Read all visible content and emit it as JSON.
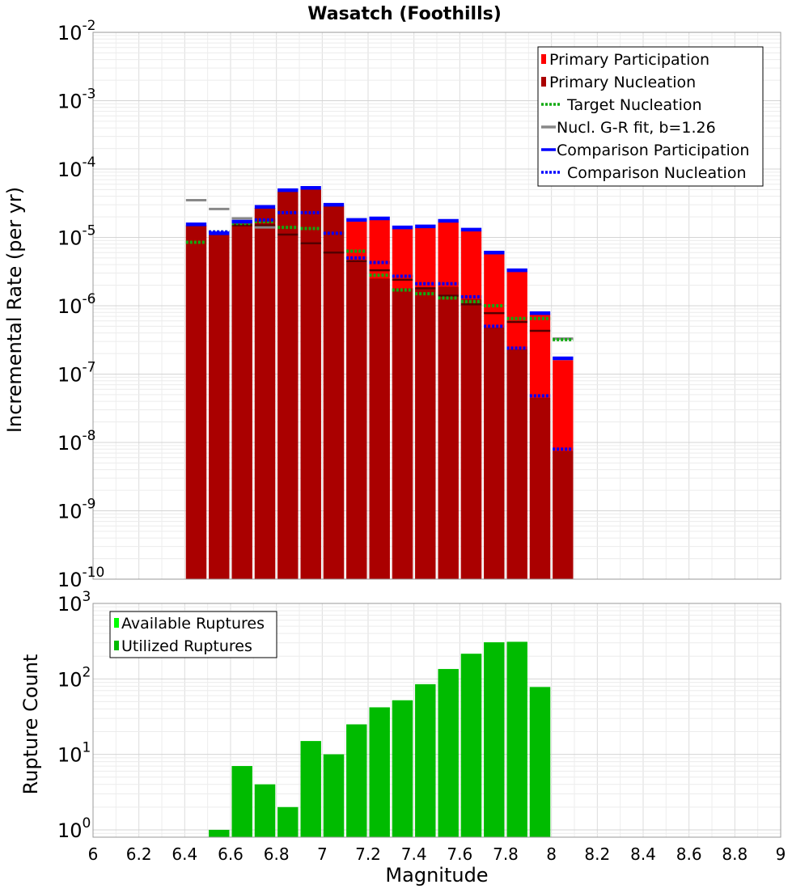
{
  "chart_data": [
    {
      "type": "bar",
      "title": "Wasatch (Foothills)",
      "ylabel": "Incremental Rate (per yr)",
      "xlabel": "",
      "yscale": "log",
      "xlim": [
        6,
        9
      ],
      "ylim": [
        1e-10,
        0.01
      ],
      "y_tick_labels": [
        {
          "base": "10",
          "exp": "-10"
        },
        {
          "base": "10",
          "exp": "-9"
        },
        {
          "base": "10",
          "exp": "-8"
        },
        {
          "base": "10",
          "exp": "-7"
        },
        {
          "base": "10",
          "exp": "-6"
        },
        {
          "base": "10",
          "exp": "-5"
        },
        {
          "base": "10",
          "exp": "-4"
        },
        {
          "base": "10",
          "exp": "-3"
        },
        {
          "base": "10",
          "exp": "-2"
        }
      ],
      "grid": true,
      "legend_position": "top-right",
      "x": [
        6.45,
        6.55,
        6.65,
        6.75,
        6.85,
        6.95,
        7.05,
        7.15,
        7.25,
        7.35,
        7.45,
        7.55,
        7.65,
        7.75,
        7.85,
        7.95,
        8.05
      ],
      "series": [
        {
          "name": "Primary Participation",
          "style": "bar",
          "color": "#ff0000",
          "values": [
            1.5e-05,
            1.1e-05,
            1.6e-05,
            2.7e-05,
            4.7e-05,
            5e-05,
            2.9e-05,
            1.7e-05,
            1.8e-05,
            1.35e-05,
            1.4e-05,
            1.7e-05,
            1.25e-05,
            5.8e-06,
            3.2e-06,
            7.5e-07,
            1.6e-07
          ]
        },
        {
          "name": "Primary Nucleation",
          "style": "bar",
          "color": "#aa0000",
          "values": [
            1.5e-05,
            1.1e-05,
            1.6e-05,
            2.7e-05,
            4.7e-05,
            5e-05,
            2.9e-05,
            4.5e-06,
            2.5e-06,
            1.8e-06,
            1.8e-06,
            1.9e-06,
            1.25e-06,
            4.8e-07,
            2.3e-07,
            4.5e-08,
            7.5e-09
          ]
        },
        {
          "name": "Target Nucleation",
          "style": "dotted",
          "color": "#11aa11",
          "values": [
            8.5e-06,
            1.2e-05,
            1.6e-05,
            1.7e-05,
            1.4e-05,
            1.35e-05,
            null,
            6.3e-06,
            2.8e-06,
            1.7e-06,
            1.5e-06,
            1.3e-06,
            1.15e-06,
            1e-06,
            6.5e-07,
            6.5e-07,
            3.2e-07
          ]
        },
        {
          "name": "Nucl. G-R fit, b=1.26",
          "style": "solid",
          "color": "#888888",
          "values": [
            3.5e-05,
            2.6e-05,
            1.9e-05,
            1.4e-05,
            null,
            null,
            null,
            null,
            null,
            null,
            null,
            null,
            null,
            null,
            null,
            null,
            3.3e-07
          ]
        },
        {
          "name": "",
          "style": "solid",
          "color": "#550000",
          "values": [
            null,
            null,
            1.5e-05,
            1.5e-05,
            1.1e-05,
            8.2e-06,
            6e-06,
            4.5e-06,
            3.3e-06,
            2.4e-06,
            1.8e-06,
            1.4e-06,
            1.05e-06,
            7.8e-07,
            5.8e-07,
            4.3e-07,
            null
          ]
        },
        {
          "name": "Comparison Participation",
          "style": "solid",
          "color": "#0000ff",
          "values": [
            1.55e-05,
            1.15e-05,
            1.7e-05,
            2.8e-05,
            4.9e-05,
            5.3e-05,
            3e-05,
            1.8e-05,
            1.9e-05,
            1.4e-05,
            1.45e-05,
            1.75e-05,
            1.3e-05,
            6e-06,
            3.3e-06,
            7.8e-07,
            1.7e-07
          ]
        },
        {
          "name": "Comparison Nucleation",
          "style": "dotted",
          "color": "#0000ff",
          "values": [
            null,
            1.2e-05,
            1.7e-05,
            1.8e-05,
            2.3e-05,
            2.3e-05,
            1.15e-05,
            5e-06,
            4.3e-06,
            2.7e-06,
            2.1e-06,
            2.1e-06,
            1.35e-06,
            5e-07,
            2.4e-07,
            4.8e-08,
            8e-09
          ]
        }
      ]
    },
    {
      "type": "bar",
      "title": "",
      "ylabel": "Rupture Count",
      "xlabel": "Magnitude",
      "yscale": "log",
      "xlim": [
        6,
        9
      ],
      "ylim": [
        0.8,
        1000
      ],
      "x_tick_labels": [
        "6",
        "6.2",
        "6.4",
        "6.6",
        "6.8",
        "7",
        "7.2",
        "7.4",
        "7.6",
        "7.8",
        "8",
        "8.2",
        "8.4",
        "8.6",
        "8.8",
        "9"
      ],
      "y_tick_labels": [
        {
          "base": "10",
          "exp": "0"
        },
        {
          "base": "10",
          "exp": "1"
        },
        {
          "base": "10",
          "exp": "2"
        },
        {
          "base": "10",
          "exp": "3"
        }
      ],
      "grid": true,
      "legend_position": "top-left",
      "x": [
        6.55,
        6.65,
        6.75,
        6.85,
        6.95,
        7.05,
        7.15,
        7.25,
        7.35,
        7.45,
        7.55,
        7.65,
        7.75,
        7.85,
        7.95
      ],
      "series": [
        {
          "name": "Available Ruptures",
          "style": "bar",
          "color": "#00ff00",
          "values": [
            1,
            7,
            4,
            2,
            15,
            10,
            25,
            42,
            52,
            85,
            135,
            215,
            305,
            310,
            78
          ]
        },
        {
          "name": "Utilized Ruptures",
          "style": "bar",
          "color": "#00bb00",
          "values": [
            1,
            7,
            4,
            2,
            15,
            10,
            25,
            42,
            52,
            85,
            135,
            215,
            305,
            310,
            78
          ]
        }
      ]
    }
  ]
}
